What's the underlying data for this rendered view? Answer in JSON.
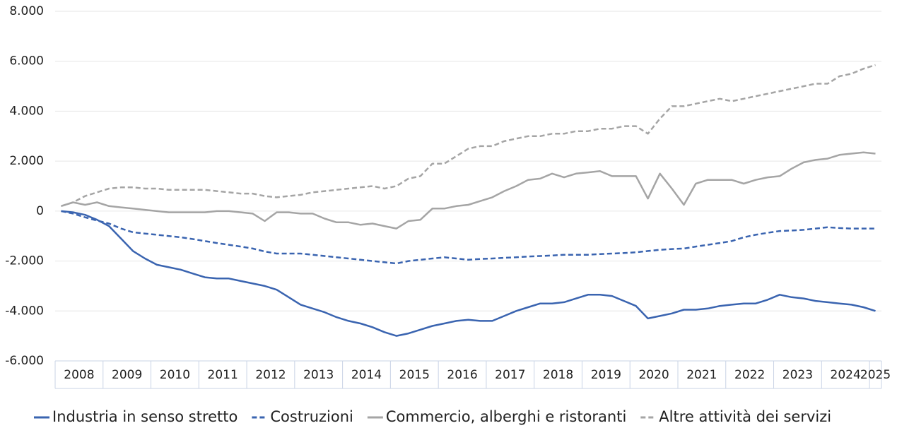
{
  "chart_data": {
    "type": "line",
    "categories": [
      "2008",
      null,
      null,
      null,
      "2009",
      null,
      null,
      null,
      "2010",
      null,
      null,
      null,
      "2011",
      null,
      null,
      null,
      "2012",
      null,
      null,
      null,
      "2013",
      null,
      null,
      null,
      "2014",
      null,
      null,
      null,
      "2015",
      null,
      null,
      null,
      "2016",
      null,
      null,
      null,
      "2017",
      null,
      null,
      null,
      "2018",
      null,
      null,
      null,
      "2019",
      null,
      null,
      null,
      "2020",
      null,
      null,
      null,
      "2021",
      null,
      null,
      null,
      "2022",
      null,
      null,
      null,
      "2023",
      null,
      null,
      null,
      "2024",
      null,
      null,
      null,
      "2025"
    ],
    "series": [
      {
        "name": "Industria in senso stretto",
        "color": "#3a64b0",
        "dash": false,
        "values": [
          0,
          -50,
          -150,
          -350,
          -600,
          -1100,
          -1600,
          -1900,
          -2150,
          -2250,
          -2350,
          -2500,
          -2650,
          -2700,
          -2700,
          -2800,
          -2900,
          -3000,
          -3150,
          -3450,
          -3750,
          -3900,
          -4050,
          -4250,
          -4400,
          -4500,
          -4650,
          -4850,
          -5000,
          -4900,
          -4750,
          -4600,
          -4500,
          -4400,
          -4350,
          -4400,
          -4400,
          -4200,
          -4000,
          -3850,
          -3700,
          -3700,
          -3650,
          -3500,
          -3350,
          -3350,
          -3400,
          -3600,
          -3800,
          -4300,
          -4200,
          -4100,
          -3950,
          -3950,
          -3900,
          -3800,
          -3750,
          -3700,
          -3700,
          -3550,
          -3350,
          -3450,
          -3500,
          -3600,
          -3650,
          -3700,
          -3750,
          -3850,
          -4000
        ]
      },
      {
        "name": "Costruzioni",
        "color": "#3a64b0",
        "dash": true,
        "values": [
          0,
          -100,
          -250,
          -380,
          -500,
          -700,
          -850,
          -900,
          -950,
          -1000,
          -1050,
          -1120,
          -1200,
          -1280,
          -1350,
          -1420,
          -1500,
          -1620,
          -1700,
          -1700,
          -1700,
          -1750,
          -1800,
          -1850,
          -1900,
          -1950,
          -2000,
          -2050,
          -2100,
          -2000,
          -1950,
          -1900,
          -1850,
          -1900,
          -1950,
          -1920,
          -1900,
          -1870,
          -1850,
          -1820,
          -1800,
          -1780,
          -1750,
          -1750,
          -1750,
          -1720,
          -1700,
          -1680,
          -1650,
          -1600,
          -1550,
          -1520,
          -1500,
          -1420,
          -1350,
          -1280,
          -1200,
          -1050,
          -950,
          -870,
          -800,
          -780,
          -750,
          -700,
          -650,
          -680,
          -700,
          -700,
          -700
        ]
      },
      {
        "name": "Commercio, alberghi e ristoranti",
        "color": "#a5a5a5",
        "dash": false,
        "values": [
          200,
          350,
          250,
          350,
          200,
          150,
          100,
          50,
          0,
          -50,
          -50,
          -50,
          -50,
          0,
          0,
          -50,
          -100,
          -400,
          -50,
          -50,
          -100,
          -100,
          -300,
          -450,
          -450,
          -550,
          -500,
          -600,
          -700,
          -400,
          -350,
          100,
          100,
          200,
          250,
          400,
          550,
          800,
          1000,
          1250,
          1300,
          1500,
          1350,
          1500,
          1550,
          1600,
          1400,
          1400,
          1400,
          500,
          1500,
          900,
          250,
          1100,
          1250,
          1250,
          1250,
          1100,
          1250,
          1350,
          1400,
          1700,
          1950,
          2050,
          2100,
          2250,
          2300,
          2350,
          2300
        ]
      },
      {
        "name": "Altre attività dei servizi",
        "color": "#a5a5a5",
        "dash": true,
        "values": [
          200,
          350,
          600,
          750,
          900,
          950,
          950,
          900,
          900,
          850,
          850,
          850,
          850,
          800,
          750,
          700,
          700,
          600,
          550,
          600,
          650,
          750,
          800,
          850,
          900,
          950,
          1000,
          900,
          1000,
          1300,
          1400,
          1900,
          1900,
          2200,
          2500,
          2600,
          2600,
          2800,
          2900,
          3000,
          3000,
          3100,
          3100,
          3200,
          3200,
          3300,
          3300,
          3400,
          3400,
          3100,
          3700,
          4200,
          4200,
          4300,
          4400,
          4500,
          4400,
          4500,
          4600,
          4700,
          4800,
          4900,
          5000,
          5100,
          5100,
          5400,
          5500,
          5700,
          5850
        ]
      }
    ],
    "ylim": [
      -6000,
      8000
    ],
    "yticks": [
      {
        "value": -6000,
        "label": "-6.000"
      },
      {
        "value": -4000,
        "label": "-4.000"
      },
      {
        "value": -2000,
        "label": "-2.000"
      },
      0,
      {
        "value": 2000,
        "label": "2.000"
      },
      {
        "value": 4000,
        "label": "4.000"
      },
      {
        "value": 6000,
        "label": "6.000"
      },
      {
        "value": 8000,
        "label": "8.000"
      }
    ],
    "grid": true
  }
}
